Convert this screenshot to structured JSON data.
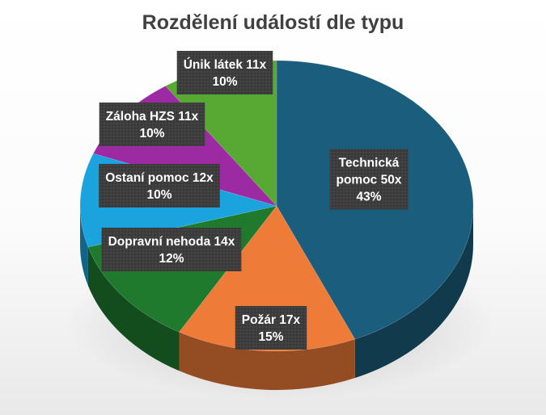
{
  "chart_data": {
    "type": "pie",
    "style": "3d",
    "title": "Rozdělení událostí dle typu",
    "legend": "none",
    "categories": [
      "Technická pomoc",
      "Požár",
      "Dopravní nehoda",
      "Ostaní pomoc",
      "Záloha HZS",
      "Únik látek"
    ],
    "values": [
      50,
      17,
      14,
      12,
      11,
      11
    ],
    "percent_labels": [
      "43%",
      "15%",
      "12%",
      "10%",
      "10%",
      "10%"
    ],
    "data_labels": [
      [
        "Technická",
        "pomoc 50x",
        "43%"
      ],
      [
        "Požár 17x",
        "15%"
      ],
      [
        "Dopravní nehoda 14x",
        "12%"
      ],
      [
        "Ostaní pomoc 12x",
        "10%"
      ],
      [
        "Záloha HZS 11x",
        "10%"
      ],
      [
        "Únik látek  11x",
        "10%"
      ]
    ],
    "colors": [
      "#1b5d7c",
      "#ef7b39",
      "#1f7a2e",
      "#1aa3dd",
      "#9c2aa2",
      "#58a834"
    ]
  }
}
